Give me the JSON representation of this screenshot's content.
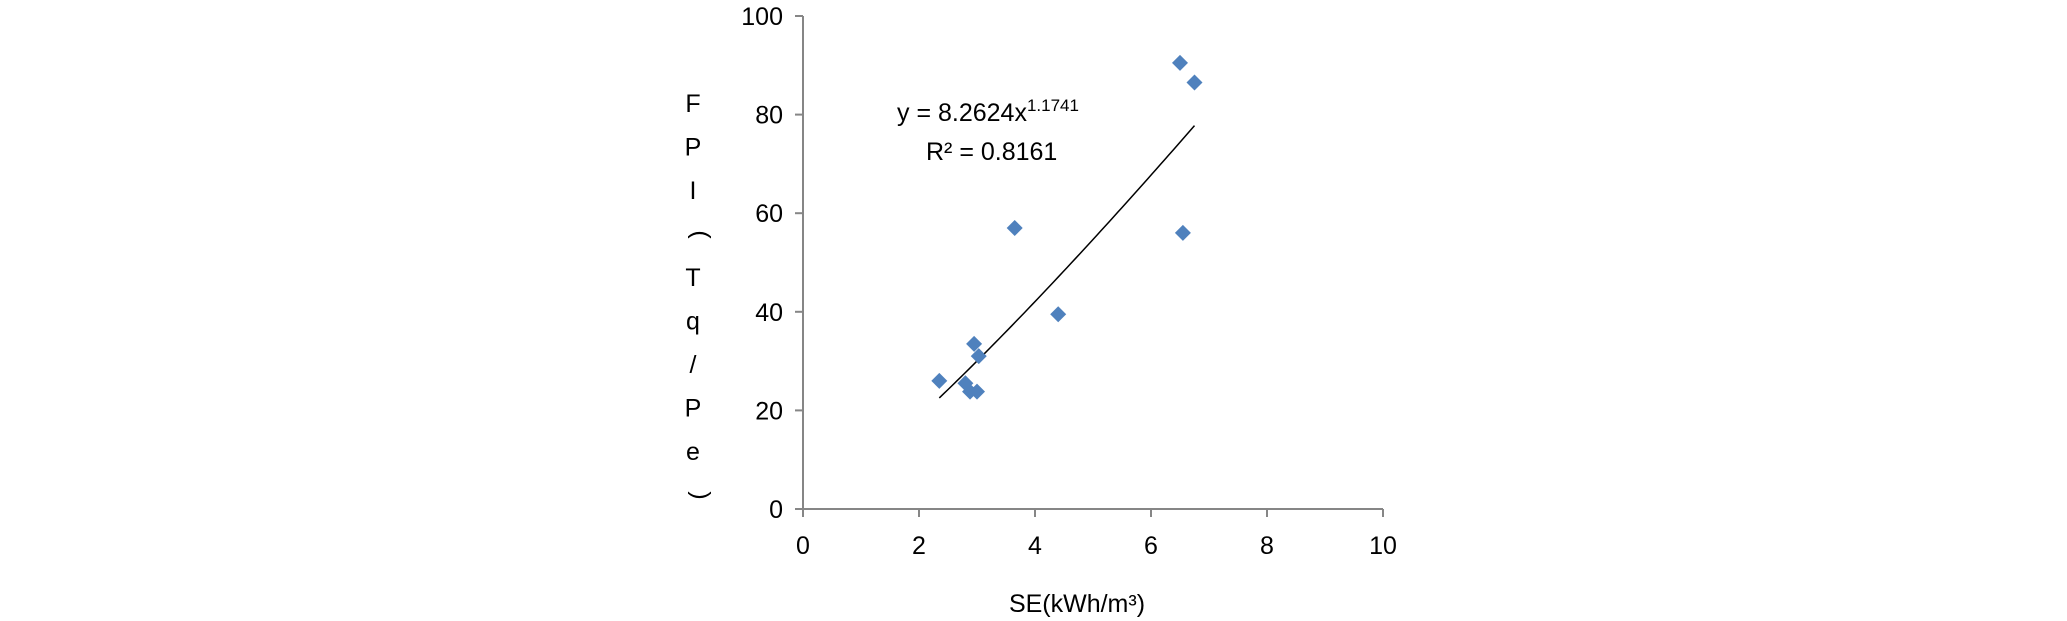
{
  "chart_data": {
    "type": "scatter",
    "title": "",
    "xlabel": "SE(kWh/m³)",
    "ylabel": "FPI(Tq/Pe)",
    "xlim": [
      0,
      10
    ],
    "ylim": [
      0,
      100
    ],
    "xticks": [
      "0",
      "2",
      "4",
      "6",
      "8",
      "10"
    ],
    "yticks": [
      "0",
      "20",
      "40",
      "60",
      "80",
      "100"
    ],
    "grid": false,
    "legend": "none",
    "marker_color": "#4f81bd",
    "series": [
      {
        "marker": "diamond",
        "x": [
          2.35,
          2.8,
          2.88,
          2.95,
          3.0,
          3.03,
          3.65,
          4.4,
          6.5,
          6.55,
          6.75
        ],
        "y": [
          26,
          25.5,
          23.8,
          33.5,
          23.8,
          31,
          57,
          39.5,
          90.5,
          56,
          86.5
        ]
      }
    ],
    "trendline": {
      "type": "power",
      "a": 8.2624,
      "b": 1.1741,
      "x_range": [
        2.35,
        6.75
      ],
      "equation_prefix": "y = 8.2624x",
      "equation_exponent": "1.1741",
      "r_squared_text": "R² = 0.8161"
    }
  }
}
